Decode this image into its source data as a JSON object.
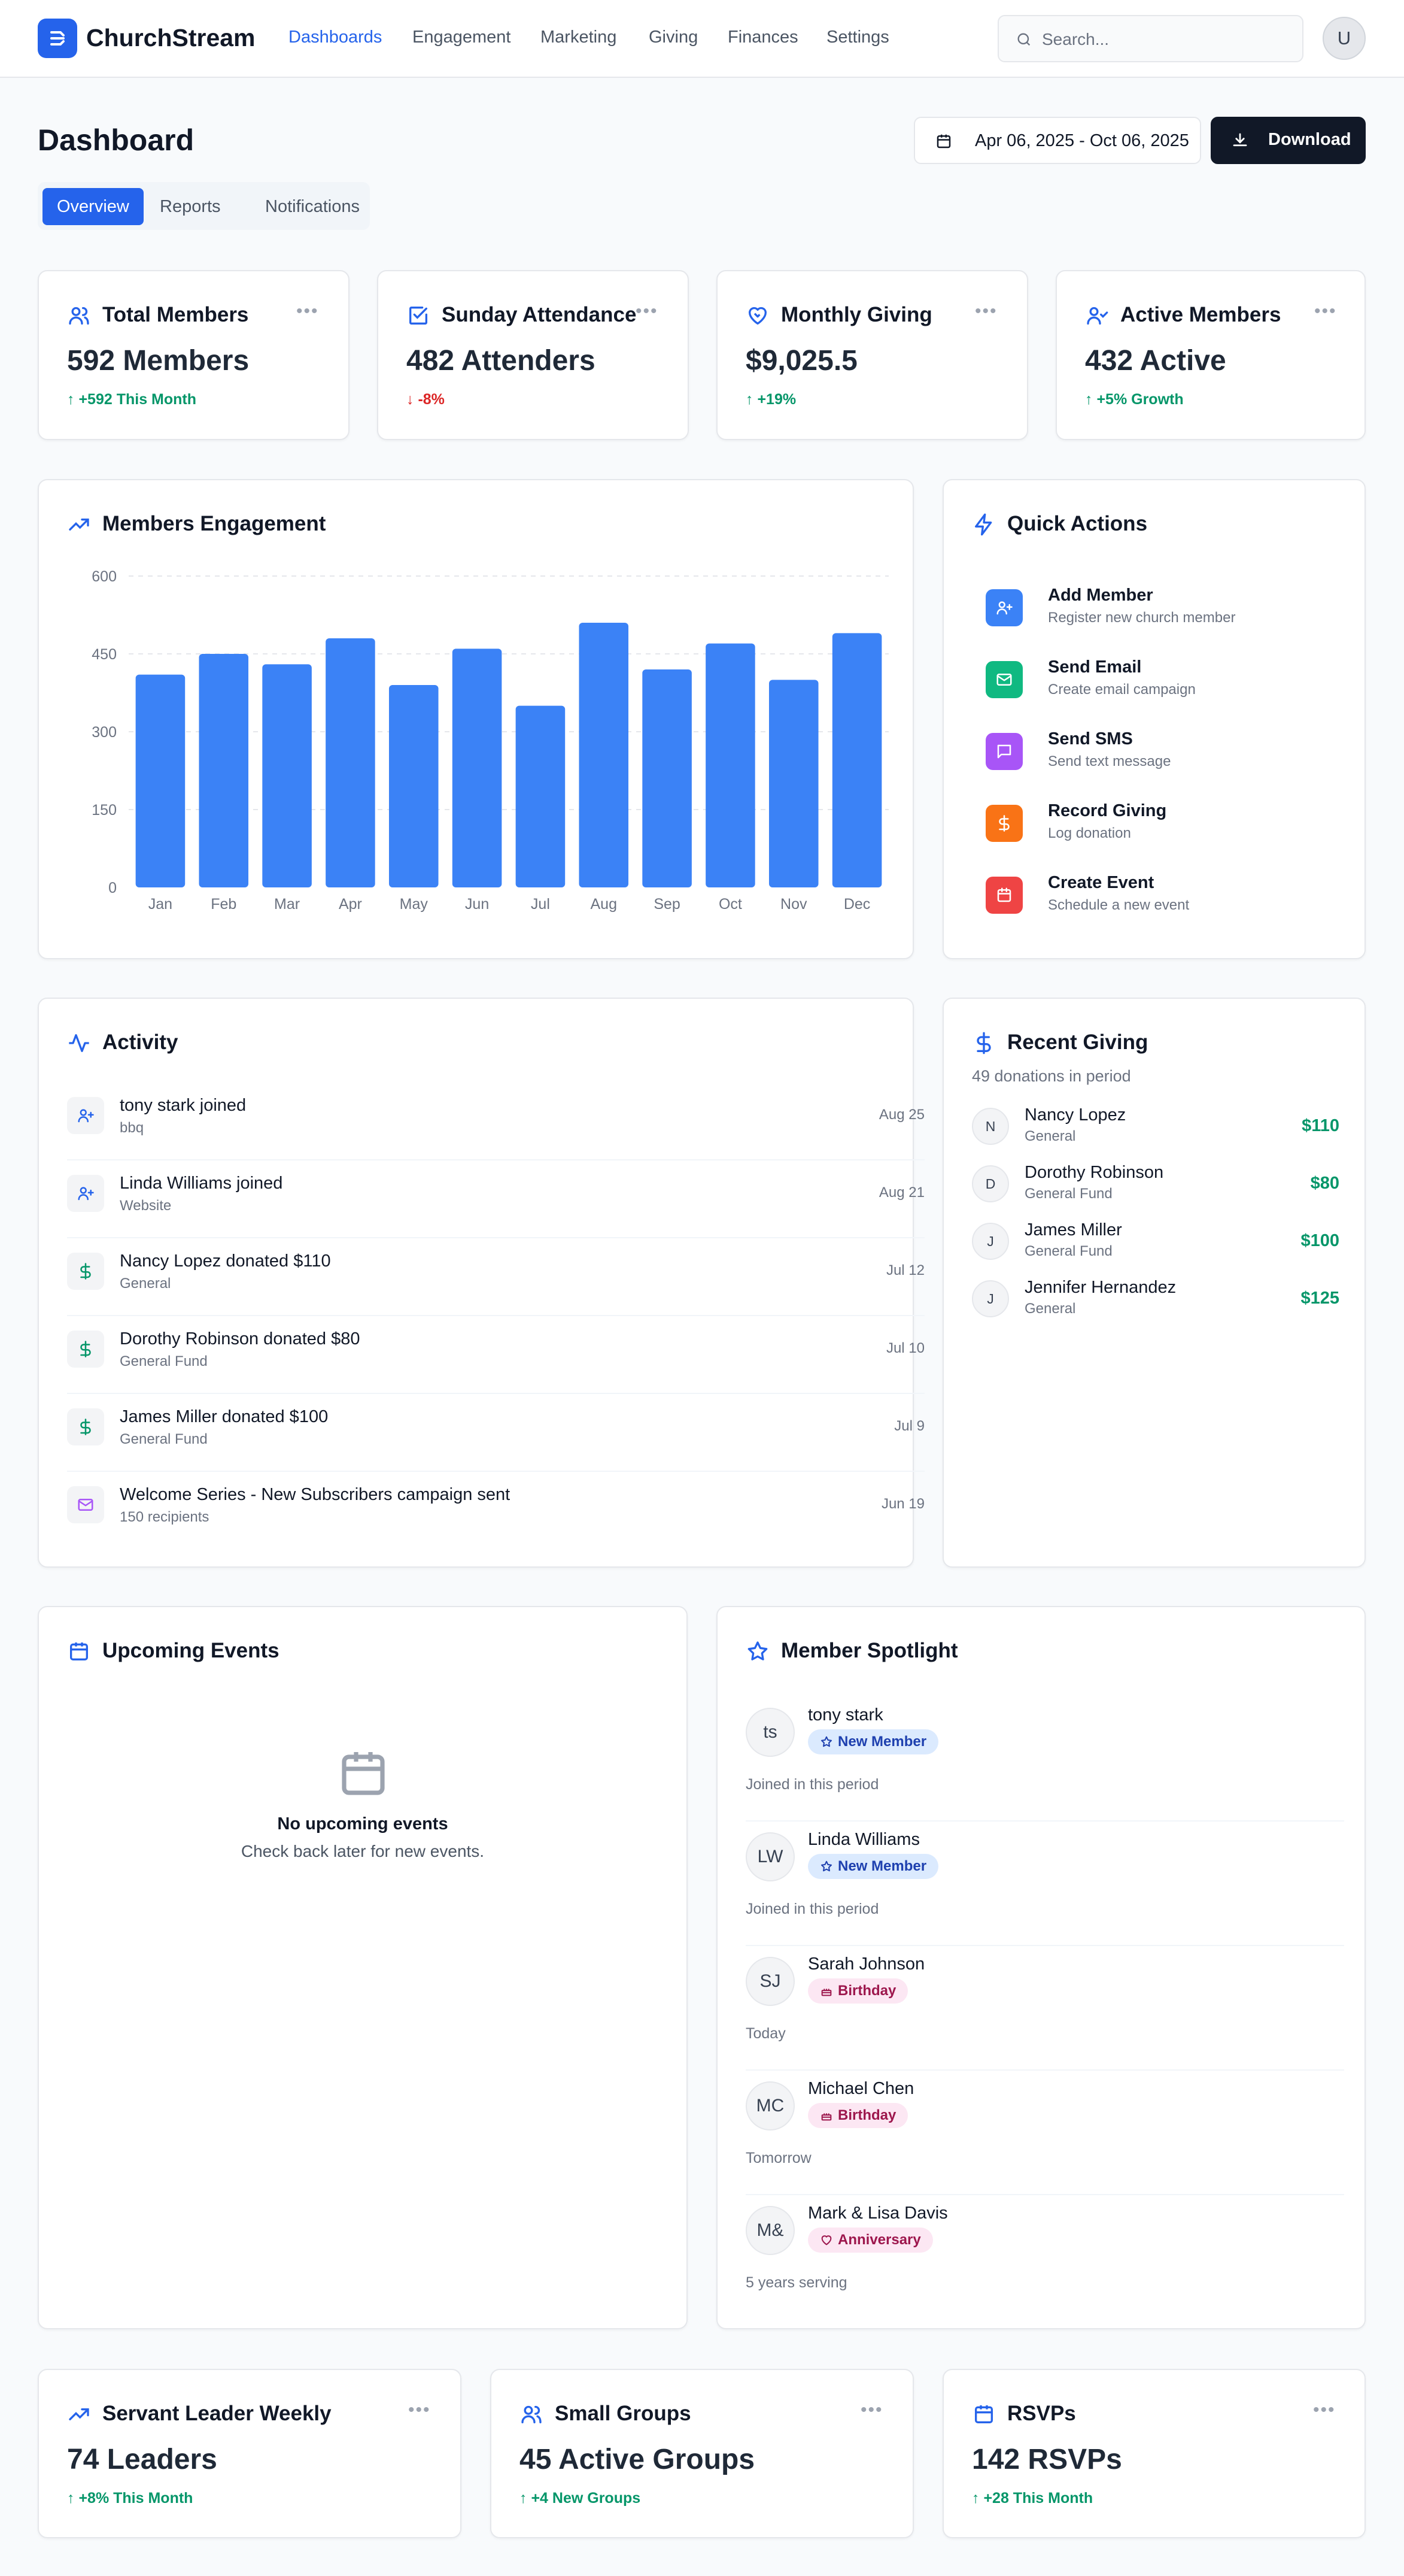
{
  "app": {
    "name": "ChurchStream"
  },
  "nav": {
    "items": [
      "Dashboards",
      "Engagement",
      "Marketing",
      "Giving",
      "Finances",
      "Settings"
    ],
    "active": "Dashboards"
  },
  "search": {
    "placeholder": "Search..."
  },
  "user": {
    "initial": "U"
  },
  "page": {
    "title": "Dashboard",
    "date_range": "Apr 06, 2025 - Oct 06, 2025",
    "download_label": "Download"
  },
  "tabs": [
    "Overview",
    "Reports",
    "Notifications"
  ],
  "stats": [
    {
      "title": "Total Members",
      "value": "592 Members",
      "change": "+592 This Month",
      "trend": "up",
      "icon": "users-icon"
    },
    {
      "title": "Sunday Attendance",
      "value": "482 Attenders",
      "change": "-8%",
      "trend": "down",
      "icon": "check-square-icon"
    },
    {
      "title": "Monthly Giving",
      "value": "$9,025.5",
      "change": "+19%",
      "trend": "up",
      "icon": "heart-handshake-icon"
    },
    {
      "title": "Active Members",
      "value": "432 Active",
      "change": "+5% Growth",
      "trend": "up",
      "icon": "user-check-icon"
    }
  ],
  "engagement": {
    "title": "Members Engagement"
  },
  "chart_data": {
    "type": "bar",
    "categories": [
      "Jan",
      "Feb",
      "Mar",
      "Apr",
      "May",
      "Jun",
      "Jul",
      "Aug",
      "Sep",
      "Oct",
      "Nov",
      "Dec"
    ],
    "values": [
      410,
      450,
      430,
      480,
      390,
      460,
      350,
      510,
      420,
      470,
      400,
      490
    ],
    "yticks": [
      0,
      150,
      300,
      450,
      600
    ],
    "ylim": [
      0,
      600
    ],
    "color": "#3b82f6",
    "grid": true
  },
  "quick_actions": {
    "title": "Quick Actions",
    "items": [
      {
        "title": "Add Member",
        "sub": "Register new church member",
        "color": "#3b82f6",
        "icon": "user-plus-icon"
      },
      {
        "title": "Send Email",
        "sub": "Create email campaign",
        "color": "#10b981",
        "icon": "mail-icon"
      },
      {
        "title": "Send SMS",
        "sub": "Send text message",
        "color": "#a855f7",
        "icon": "message-icon"
      },
      {
        "title": "Record Giving",
        "sub": "Log donation",
        "color": "#f97316",
        "icon": "dollar-icon"
      },
      {
        "title": "Create Event",
        "sub": "Schedule a new event",
        "color": "#ef4444",
        "icon": "calendar-icon"
      }
    ]
  },
  "activity": {
    "title": "Activity",
    "items": [
      {
        "title": "tony stark joined",
        "sub": "bbq",
        "date": "Aug 25",
        "icon": "user-plus-icon"
      },
      {
        "title": "Linda Williams joined",
        "sub": "Website",
        "date": "Aug 21",
        "icon": "user-plus-icon"
      },
      {
        "title": "Nancy Lopez donated $110",
        "sub": "General",
        "date": "Jul 12",
        "icon": "dollar-icon"
      },
      {
        "title": "Dorothy Robinson donated $80",
        "sub": "General Fund",
        "date": "Jul 10",
        "icon": "dollar-icon"
      },
      {
        "title": "James Miller donated $100",
        "sub": "General Fund",
        "date": "Jul 9",
        "icon": "dollar-icon"
      },
      {
        "title": "Welcome Series - New Subscribers campaign sent",
        "sub": "150 recipients",
        "date": "Jun 19",
        "icon": "mail-icon"
      }
    ]
  },
  "giving": {
    "title": "Recent Giving",
    "subtitle": "49 donations in period",
    "items": [
      {
        "initial": "N",
        "name": "Nancy Lopez",
        "fund": "General",
        "amount": "$110"
      },
      {
        "initial": "D",
        "name": "Dorothy Robinson",
        "fund": "General Fund",
        "amount": "$80"
      },
      {
        "initial": "J",
        "name": "James Miller",
        "fund": "General Fund",
        "amount": "$100"
      },
      {
        "initial": "J",
        "name": "Jennifer Hernandez",
        "fund": "General",
        "amount": "$125"
      }
    ]
  },
  "events": {
    "title": "Upcoming Events",
    "empty_title": "No upcoming events",
    "empty_sub": "Check back later for new events."
  },
  "spotlight": {
    "title": "Member Spotlight",
    "items": [
      {
        "initials": "ts",
        "name": "tony stark",
        "badge": "New Member",
        "badge_type": "new",
        "note": "Joined in this period"
      },
      {
        "initials": "LW",
        "name": "Linda Williams",
        "badge": "New Member",
        "badge_type": "new",
        "note": "Joined in this period"
      },
      {
        "initials": "SJ",
        "name": "Sarah Johnson",
        "badge": "Birthday",
        "badge_type": "birthday",
        "note": "Today"
      },
      {
        "initials": "MC",
        "name": "Michael Chen",
        "badge": "Birthday",
        "badge_type": "birthday",
        "note": "Tomorrow"
      },
      {
        "initials": "M&",
        "name": "Mark & Lisa Davis",
        "badge": "Anniversary",
        "badge_type": "anniversary",
        "note": "5 years serving"
      }
    ]
  },
  "bottom_stats": [
    {
      "title": "Servant Leader Weekly",
      "value": "74 Leaders",
      "change": "+8% This Month",
      "icon": "trending-up-icon"
    },
    {
      "title": "Small Groups",
      "value": "45 Active Groups",
      "change": "+4 New Groups",
      "icon": "users-icon"
    },
    {
      "title": "RSVPs",
      "value": "142 RSVPs",
      "change": "+28 This Month",
      "icon": "calendar-icon"
    }
  ]
}
